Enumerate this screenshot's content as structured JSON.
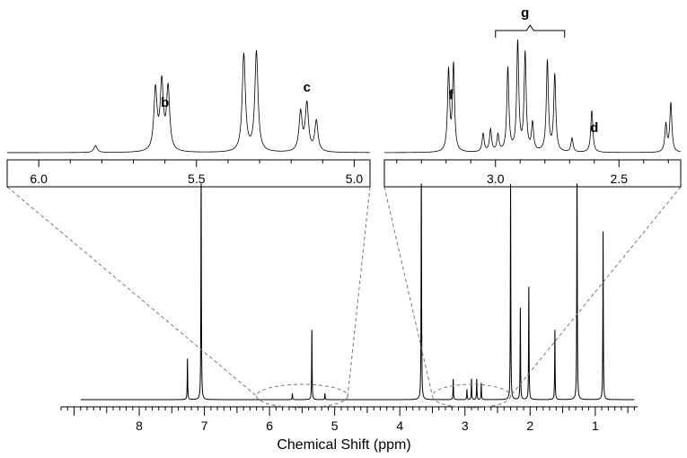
{
  "chart_data": [
    {
      "type": "line",
      "panel": "full-spectrum",
      "xlabel": "Chemical Shift (ppm)",
      "ylabel": "",
      "xlim": [
        9.2,
        0.35
      ],
      "x_reversed": true,
      "tick_values": [
        8,
        7,
        6,
        5,
        4,
        3,
        2,
        1
      ],
      "tick_labels": [
        "8",
        "7",
        "6",
        "5",
        "4",
        "3",
        "2",
        "1"
      ],
      "grid": false,
      "line_color": "#000000",
      "peaks": [
        {
          "x": 7.26,
          "height": 0.2
        },
        {
          "x": 7.05,
          "height": 1.15
        },
        {
          "x": 5.65,
          "height": 0.03
        },
        {
          "x": 5.35,
          "height": 0.34
        },
        {
          "x": 5.15,
          "height": 0.03
        },
        {
          "x": 3.67,
          "height": 1.2
        },
        {
          "x": 3.18,
          "height": 0.1
        },
        {
          "x": 2.97,
          "height": 0.05
        },
        {
          "x": 2.9,
          "height": 0.1
        },
        {
          "x": 2.82,
          "height": 0.1
        },
        {
          "x": 2.75,
          "height": 0.08
        },
        {
          "x": 2.3,
          "height": 1.05
        },
        {
          "x": 2.15,
          "height": 0.44
        },
        {
          "x": 2.02,
          "height": 0.55
        },
        {
          "x": 1.62,
          "height": 0.34
        },
        {
          "x": 1.28,
          "height": 1.3
        },
        {
          "x": 0.88,
          "height": 0.82
        }
      ],
      "highlight_regions": [
        [
          6.2,
          4.8
        ],
        [
          3.5,
          2.3
        ]
      ]
    },
    {
      "type": "line",
      "panel": "inset-left",
      "xlim": [
        6.1,
        4.95
      ],
      "x_reversed": true,
      "tick_values": [
        6.0,
        5.5,
        5.0
      ],
      "tick_labels": [
        "6.0",
        "5.5",
        "5.0"
      ],
      "annotations": [
        {
          "label": "b",
          "x": 5.6
        },
        {
          "label": "c",
          "x": 5.15
        }
      ],
      "peaks": [
        {
          "x": 5.82,
          "height": 0.05
        },
        {
          "x": 5.63,
          "height": 0.44
        },
        {
          "x": 5.61,
          "height": 0.48
        },
        {
          "x": 5.59,
          "height": 0.45
        },
        {
          "x": 5.35,
          "height": 0.7
        },
        {
          "x": 5.31,
          "height": 0.72
        },
        {
          "x": 5.17,
          "height": 0.28
        },
        {
          "x": 5.15,
          "height": 0.34
        },
        {
          "x": 5.12,
          "height": 0.22
        }
      ]
    },
    {
      "type": "line",
      "panel": "inset-right",
      "xlim": [
        3.45,
        2.25
      ],
      "x_reversed": true,
      "tick_values": [
        3.0,
        2.5
      ],
      "tick_labels": [
        "3.0",
        "2.5"
      ],
      "annotations": [
        {
          "label": "f",
          "x": 3.18
        },
        {
          "label": "g",
          "x": 2.88
        },
        {
          "label": "d",
          "x": 2.6
        }
      ],
      "bracket_range": [
        3.0,
        2.72
      ],
      "peaks": [
        {
          "x": 3.19,
          "height": 0.58
        },
        {
          "x": 3.17,
          "height": 0.62
        },
        {
          "x": 3.05,
          "height": 0.13
        },
        {
          "x": 3.02,
          "height": 0.16
        },
        {
          "x": 2.99,
          "height": 0.12
        },
        {
          "x": 2.95,
          "height": 0.6
        },
        {
          "x": 2.91,
          "height": 0.78
        },
        {
          "x": 2.88,
          "height": 0.7
        },
        {
          "x": 2.85,
          "height": 0.2
        },
        {
          "x": 2.79,
          "height": 0.65
        },
        {
          "x": 2.76,
          "height": 0.55
        },
        {
          "x": 2.69,
          "height": 0.1
        },
        {
          "x": 2.61,
          "height": 0.3
        },
        {
          "x": 2.31,
          "height": 0.2
        },
        {
          "x": 2.29,
          "height": 0.35
        }
      ]
    }
  ]
}
